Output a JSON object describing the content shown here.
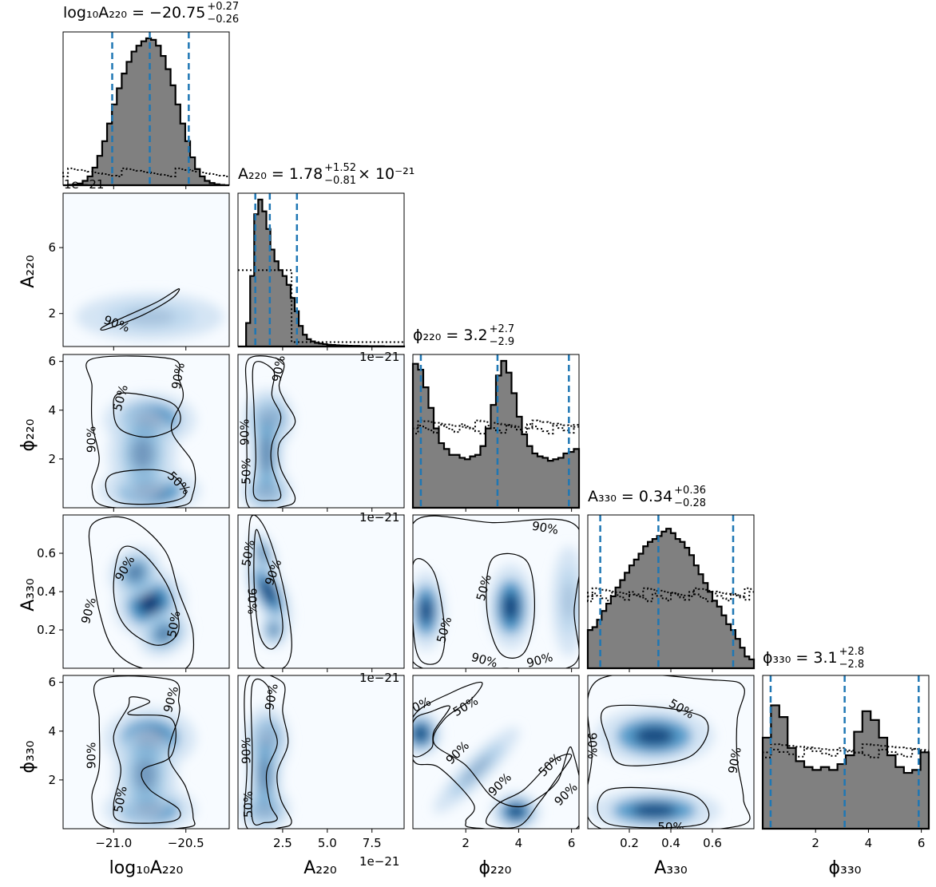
{
  "chart_data": {
    "type": "corner",
    "parameters": [
      {
        "key": "log10A220",
        "label": "log₁₀A₂₂₀",
        "range": [
          -21.35,
          -20.2
        ],
        "ticks": [
          -21.0,
          -20.5
        ],
        "tick_labels": [
          "−21.0",
          "−20.5"
        ]
      },
      {
        "key": "A220",
        "label": "A₂₂₀",
        "range": [
          0.0,
          9.3
        ],
        "ticks": [
          2.5,
          5.0,
          7.5
        ],
        "tick_labels": [
          "2.5",
          "5.0",
          "7.5"
        ],
        "offset": "1e−21"
      },
      {
        "key": "phi220",
        "label": "ϕ₂₂₀",
        "range": [
          0.0,
          6.283
        ],
        "ticks": [
          2,
          4,
          6
        ],
        "tick_labels": [
          "2",
          "4",
          "6"
        ]
      },
      {
        "key": "A330",
        "label": "A₃₃₀",
        "range": [
          0.0,
          0.8
        ],
        "ticks": [
          0.2,
          0.4,
          0.6
        ],
        "tick_labels": [
          "0.2",
          "0.4",
          "0.6"
        ]
      },
      {
        "key": "phi330",
        "label": "ϕ₃₃₀",
        "range": [
          0.0,
          6.283
        ],
        "ticks": [
          2,
          4,
          6
        ],
        "tick_labels": [
          "2",
          "4",
          "6"
        ]
      }
    ],
    "titles": [
      {
        "prefix": "log₁₀A₂₂₀ = −20.75",
        "upper": "+0.27",
        "lower": "−0.26",
        "suffix": ""
      },
      {
        "prefix": "A₂₂₀ = 1.78",
        "upper": "+1.52",
        "lower": "−0.81",
        "suffix": " × 10⁻²¹"
      },
      {
        "prefix": "ϕ₂₂₀ = 3.2",
        "upper": "+2.7",
        "lower": "−2.9",
        "suffix": ""
      },
      {
        "prefix": "A₃₃₀ = 0.34",
        "upper": "+0.36",
        "lower": "−0.28",
        "suffix": ""
      },
      {
        "prefix": "ϕ₃₃₀ = 3.1",
        "upper": "+2.8",
        "lower": "−2.8",
        "suffix": ""
      }
    ],
    "quantiles": [
      [
        -21.01,
        -20.75,
        -20.48
      ],
      [
        0.97,
        1.78,
        3.3
      ],
      [
        0.3,
        3.2,
        5.9
      ],
      [
        0.06,
        0.34,
        0.7
      ],
      [
        0.3,
        3.1,
        5.9
      ]
    ],
    "histograms": [
      {
        "values": [
          0.0,
          0.003,
          0.006,
          0.012,
          0.03,
          0.06,
          0.12,
          0.2,
          0.3,
          0.42,
          0.55,
          0.66,
          0.76,
          0.84,
          0.91,
          0.95,
          0.98,
          1.0,
          0.99,
          0.95,
          0.88,
          0.79,
          0.68,
          0.55,
          0.42,
          0.3,
          0.19,
          0.11,
          0.06,
          0.03,
          0.015,
          0.006,
          0.002,
          0.0
        ],
        "prior": 0.09
      },
      {
        "values": [
          0.0,
          0.0,
          0.16,
          0.48,
          0.9,
          1.0,
          0.92,
          0.8,
          0.66,
          0.58,
          0.52,
          0.48,
          0.42,
          0.33,
          0.24,
          0.14,
          0.08,
          0.05,
          0.035,
          0.025,
          0.02,
          0.016,
          0.012,
          0.01,
          0.008,
          0.007,
          0.006,
          0.005,
          0.004,
          0.004,
          0.003,
          0.003,
          0.002,
          0.002,
          0.002,
          0.002,
          0.001,
          0.001,
          0.001,
          0.001,
          0.001
        ],
        "prior_steps": [
          [
            0.0,
            0.52
          ],
          [
            1.25,
            0.52
          ],
          [
            3.0,
            0.03
          ],
          [
            9.3,
            0.03
          ]
        ]
      },
      {
        "values": [
          0.98,
          0.94,
          0.82,
          0.68,
          0.54,
          0.44,
          0.4,
          0.36,
          0.36,
          0.34,
          0.33,
          0.35,
          0.36,
          0.42,
          0.54,
          0.7,
          0.9,
          1.0,
          0.92,
          0.78,
          0.62,
          0.5,
          0.42,
          0.37,
          0.35,
          0.34,
          0.32,
          0.33,
          0.34,
          0.37,
          0.38,
          0.4
        ],
        "prior": 0.57
      },
      {
        "values": [
          0.26,
          0.28,
          0.33,
          0.39,
          0.44,
          0.49,
          0.55,
          0.6,
          0.65,
          0.7,
          0.74,
          0.78,
          0.83,
          0.86,
          0.88,
          0.9,
          0.93,
          0.95,
          0.92,
          0.88,
          0.86,
          0.82,
          0.77,
          0.7,
          0.64,
          0.58,
          0.52,
          0.46,
          0.42,
          0.36,
          0.3,
          0.26,
          0.2,
          0.14,
          0.08,
          0.06
        ],
        "prior": 0.52
      },
      {
        "values": [
          0.62,
          0.84,
          0.76,
          0.55,
          0.46,
          0.42,
          0.4,
          0.42,
          0.4,
          0.44,
          0.5,
          0.66,
          0.8,
          0.74,
          0.62,
          0.5,
          0.42,
          0.38,
          0.4,
          0.52
        ],
        "prior": 0.55
      }
    ],
    "contour_levels": [
      "50%",
      "90%"
    ],
    "x_offset_label": "1e−21",
    "y_offset_label": "1e−21",
    "y_ticks_A220": [
      2,
      6
    ],
    "colors": {
      "hist_fill": "#808080",
      "hist_edge": "#000000",
      "quantile": "#1f77b4",
      "density": "#08306b",
      "density_light": "#f7fbff"
    }
  }
}
